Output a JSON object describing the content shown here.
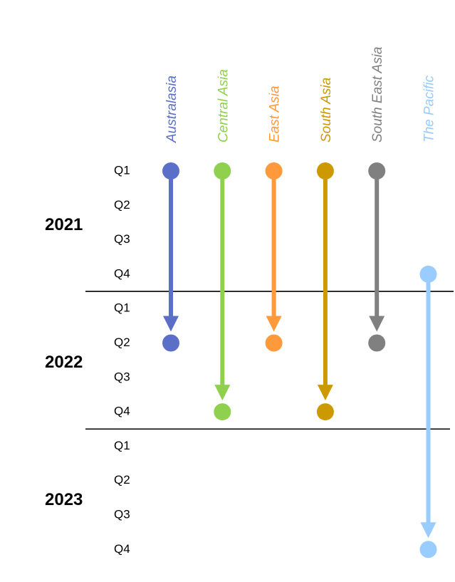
{
  "timeline": {
    "years": [
      {
        "label": "2021",
        "quarters": [
          "Q1",
          "Q2",
          "Q3",
          "Q4"
        ]
      },
      {
        "label": "2022",
        "quarters": [
          "Q1",
          "Q2",
          "Q3",
          "Q4"
        ]
      },
      {
        "label": "2023",
        "quarters": [
          "Q1",
          "Q2",
          "Q3",
          "Q4"
        ]
      }
    ],
    "regions": [
      {
        "name": "Australasia",
        "color": "#5b6fc9",
        "start": "2021 Q1",
        "end": "2022 Q2"
      },
      {
        "name": "Central Asia",
        "color": "#8fd14f",
        "start": "2021 Q1",
        "end": "2022 Q4"
      },
      {
        "name": "East Asia",
        "color": "#ff9a3c",
        "start": "2021 Q1",
        "end": "2022 Q2"
      },
      {
        "name": "South Asia",
        "color": "#cc9900",
        "start": "2021 Q1",
        "end": "2022 Q4"
      },
      {
        "name": "South East Asia",
        "color": "#808080",
        "start": "2021 Q1",
        "end": "2022 Q2"
      },
      {
        "name": "The Pacific",
        "color": "#99ccff",
        "start": "2021 Q4",
        "end": "2023 Q4"
      }
    ]
  }
}
